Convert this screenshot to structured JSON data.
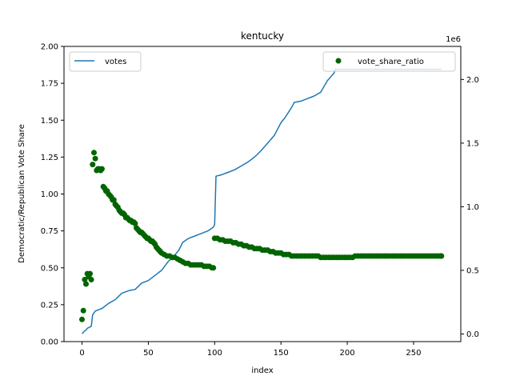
{
  "chart_data": {
    "type": "line+scatter",
    "title": "kentucky",
    "xlabel": "index",
    "ylabel": "Democratic/Republican Vote Share",
    "xlim": [
      -13.6,
      285.6
    ],
    "ylim_left": [
      0,
      2.0
    ],
    "ylim_right": [
      -60000,
      2260000
    ],
    "right_axis_scale_label": "1e6",
    "x_ticks": [
      0,
      50,
      100,
      150,
      200,
      250
    ],
    "y_ticks_left": [
      0.0,
      0.25,
      0.5,
      0.75,
      1.0,
      1.25,
      1.5,
      1.75,
      2.0
    ],
    "y_ticks_left_labels": [
      "0.00",
      "0.25",
      "0.50",
      "0.75",
      "1.00",
      "1.25",
      "1.50",
      "1.75",
      "2.00"
    ],
    "y_ticks_right": [
      0,
      500000,
      1000000,
      1500000,
      2000000
    ],
    "y_ticks_right_labels": [
      "0.0",
      "0.5",
      "1.0",
      "1.5",
      "2.0"
    ],
    "grid": false,
    "series": [
      {
        "name": "votes",
        "kind": "line",
        "axis": "right",
        "color": "#1f77b4",
        "legend_position": "upper-left",
        "points": [
          [
            0,
            2000
          ],
          [
            2,
            25000
          ],
          [
            3,
            30000
          ],
          [
            4,
            45000
          ],
          [
            7,
            60000
          ],
          [
            8,
            150000
          ],
          [
            10,
            180000
          ],
          [
            15,
            200000
          ],
          [
            20,
            240000
          ],
          [
            25,
            270000
          ],
          [
            30,
            320000
          ],
          [
            35,
            340000
          ],
          [
            40,
            350000
          ],
          [
            45,
            400000
          ],
          [
            50,
            420000
          ],
          [
            55,
            460000
          ],
          [
            60,
            500000
          ],
          [
            65,
            570000
          ],
          [
            70,
            620000
          ],
          [
            73,
            660000
          ],
          [
            76,
            720000
          ],
          [
            80,
            750000
          ],
          [
            85,
            770000
          ],
          [
            90,
            790000
          ],
          [
            95,
            810000
          ],
          [
            99,
            840000
          ],
          [
            100,
            860000
          ],
          [
            101,
            1240000
          ],
          [
            105,
            1250000
          ],
          [
            110,
            1270000
          ],
          [
            115,
            1290000
          ],
          [
            120,
            1320000
          ],
          [
            125,
            1350000
          ],
          [
            130,
            1390000
          ],
          [
            135,
            1440000
          ],
          [
            140,
            1500000
          ],
          [
            145,
            1560000
          ],
          [
            150,
            1660000
          ],
          [
            153,
            1700000
          ],
          [
            158,
            1780000
          ],
          [
            160,
            1820000
          ],
          [
            165,
            1830000
          ],
          [
            170,
            1850000
          ],
          [
            175,
            1870000
          ],
          [
            180,
            1900000
          ],
          [
            185,
            1990000
          ],
          [
            190,
            2050000
          ],
          [
            191,
            2080000
          ],
          [
            200,
            2080000
          ],
          [
            210,
            2080000
          ],
          [
            240,
            2080000
          ],
          [
            271,
            2080000
          ]
        ]
      },
      {
        "name": "vote_share_ratio",
        "kind": "scatter",
        "axis": "left",
        "color": "#006400",
        "legend_position": "upper-right",
        "points": [
          [
            0,
            0.15
          ],
          [
            1,
            0.21
          ],
          [
            2,
            0.42
          ],
          [
            3,
            0.39
          ],
          [
            4,
            0.46
          ],
          [
            5,
            0.44
          ],
          [
            6,
            0.46
          ],
          [
            7,
            0.42
          ],
          [
            8,
            1.2
          ],
          [
            9,
            1.28
          ],
          [
            10,
            1.24
          ],
          [
            11,
            1.16
          ],
          [
            12,
            1.17
          ],
          [
            13,
            1.17
          ],
          [
            14,
            1.16
          ],
          [
            15,
            1.17
          ],
          [
            16,
            1.05
          ],
          [
            17,
            1.04
          ],
          [
            18,
            1.02
          ],
          [
            19,
            1.02
          ],
          [
            20,
            1.0
          ],
          [
            21,
            0.99
          ],
          [
            22,
            0.98
          ],
          [
            23,
            0.96
          ],
          [
            24,
            0.96
          ],
          [
            25,
            0.93
          ],
          [
            26,
            0.92
          ],
          [
            27,
            0.91
          ],
          [
            28,
            0.89
          ],
          [
            29,
            0.88
          ],
          [
            30,
            0.87
          ],
          [
            31,
            0.87
          ],
          [
            32,
            0.86
          ],
          [
            33,
            0.84
          ],
          [
            34,
            0.84
          ],
          [
            35,
            0.83
          ],
          [
            36,
            0.82
          ],
          [
            37,
            0.82
          ],
          [
            38,
            0.81
          ],
          [
            39,
            0.81
          ],
          [
            40,
            0.8
          ],
          [
            41,
            0.77
          ],
          [
            42,
            0.76
          ],
          [
            43,
            0.75
          ],
          [
            44,
            0.74
          ],
          [
            45,
            0.74
          ],
          [
            46,
            0.73
          ],
          [
            47,
            0.72
          ],
          [
            48,
            0.71
          ],
          [
            49,
            0.7
          ],
          [
            50,
            0.7
          ],
          [
            51,
            0.69
          ],
          [
            52,
            0.68
          ],
          [
            53,
            0.68
          ],
          [
            54,
            0.67
          ],
          [
            55,
            0.66
          ],
          [
            56,
            0.64
          ],
          [
            57,
            0.63
          ],
          [
            58,
            0.62
          ],
          [
            59,
            0.61
          ],
          [
            60,
            0.6
          ],
          [
            62,
            0.59
          ],
          [
            64,
            0.58
          ],
          [
            66,
            0.58
          ],
          [
            68,
            0.57
          ],
          [
            70,
            0.57
          ],
          [
            72,
            0.56
          ],
          [
            74,
            0.55
          ],
          [
            76,
            0.54
          ],
          [
            78,
            0.53
          ],
          [
            80,
            0.53
          ],
          [
            82,
            0.52
          ],
          [
            84,
            0.52
          ],
          [
            86,
            0.52
          ],
          [
            88,
            0.52
          ],
          [
            90,
            0.52
          ],
          [
            92,
            0.51
          ],
          [
            94,
            0.51
          ],
          [
            96,
            0.51
          ],
          [
            98,
            0.5
          ],
          [
            99,
            0.5
          ],
          [
            100,
            0.7
          ],
          [
            102,
            0.7
          ],
          [
            104,
            0.69
          ],
          [
            106,
            0.69
          ],
          [
            108,
            0.68
          ],
          [
            110,
            0.68
          ],
          [
            112,
            0.68
          ],
          [
            114,
            0.67
          ],
          [
            116,
            0.67
          ],
          [
            118,
            0.66
          ],
          [
            120,
            0.66
          ],
          [
            122,
            0.65
          ],
          [
            124,
            0.65
          ],
          [
            126,
            0.64
          ],
          [
            128,
            0.64
          ],
          [
            130,
            0.63
          ],
          [
            132,
            0.63
          ],
          [
            134,
            0.63
          ],
          [
            136,
            0.62
          ],
          [
            138,
            0.62
          ],
          [
            140,
            0.62
          ],
          [
            142,
            0.61
          ],
          [
            144,
            0.61
          ],
          [
            146,
            0.6
          ],
          [
            148,
            0.6
          ],
          [
            150,
            0.6
          ],
          [
            152,
            0.59
          ],
          [
            154,
            0.59
          ],
          [
            156,
            0.59
          ],
          [
            158,
            0.58
          ],
          [
            160,
            0.58
          ],
          [
            162,
            0.58
          ],
          [
            164,
            0.58
          ],
          [
            166,
            0.58
          ],
          [
            168,
            0.58
          ],
          [
            170,
            0.58
          ],
          [
            172,
            0.58
          ],
          [
            174,
            0.58
          ],
          [
            176,
            0.58
          ],
          [
            178,
            0.58
          ],
          [
            180,
            0.57
          ],
          [
            182,
            0.57
          ],
          [
            184,
            0.57
          ],
          [
            186,
            0.57
          ],
          [
            188,
            0.57
          ],
          [
            190,
            0.57
          ],
          [
            192,
            0.57
          ],
          [
            194,
            0.57
          ],
          [
            196,
            0.57
          ],
          [
            198,
            0.57
          ],
          [
            200,
            0.57
          ],
          [
            202,
            0.57
          ],
          [
            204,
            0.57
          ],
          [
            206,
            0.58
          ],
          [
            208,
            0.58
          ],
          [
            210,
            0.58
          ],
          [
            212,
            0.58
          ],
          [
            214,
            0.58
          ],
          [
            216,
            0.58
          ],
          [
            218,
            0.58
          ],
          [
            220,
            0.58
          ],
          [
            222,
            0.58
          ],
          [
            224,
            0.58
          ],
          [
            226,
            0.58
          ],
          [
            228,
            0.58
          ],
          [
            230,
            0.58
          ],
          [
            232,
            0.58
          ],
          [
            234,
            0.58
          ],
          [
            236,
            0.58
          ],
          [
            238,
            0.58
          ],
          [
            240,
            0.58
          ],
          [
            242,
            0.58
          ],
          [
            244,
            0.58
          ],
          [
            246,
            0.58
          ],
          [
            248,
            0.58
          ],
          [
            250,
            0.58
          ],
          [
            252,
            0.58
          ],
          [
            254,
            0.58
          ],
          [
            256,
            0.58
          ],
          [
            258,
            0.58
          ],
          [
            260,
            0.58
          ],
          [
            262,
            0.58
          ],
          [
            264,
            0.58
          ],
          [
            266,
            0.58
          ],
          [
            268,
            0.58
          ],
          [
            270,
            0.58
          ],
          [
            271,
            0.58
          ]
        ]
      }
    ]
  }
}
